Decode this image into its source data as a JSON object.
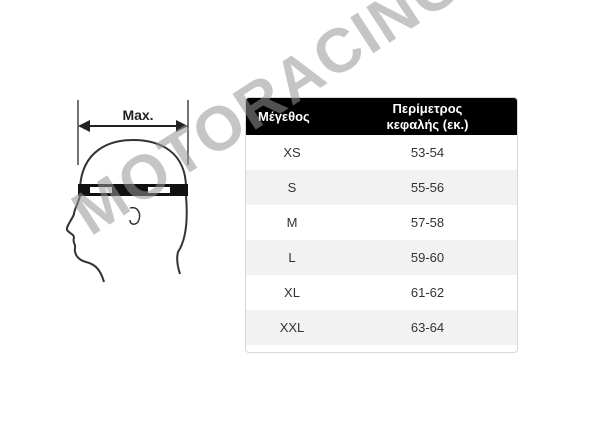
{
  "diagram": {
    "label": "Max."
  },
  "table": {
    "header": [
      "Μέγεθος",
      "Περίμετρος κεφαλής (εκ.)"
    ],
    "rows": [
      [
        "XS",
        "53-54"
      ],
      [
        "S",
        "55-56"
      ],
      [
        "M",
        "57-58"
      ],
      [
        "L",
        "59-60"
      ],
      [
        "XL",
        "61-62"
      ],
      [
        "XXL",
        "63-64"
      ]
    ]
  },
  "watermark": "MOTORACING"
}
